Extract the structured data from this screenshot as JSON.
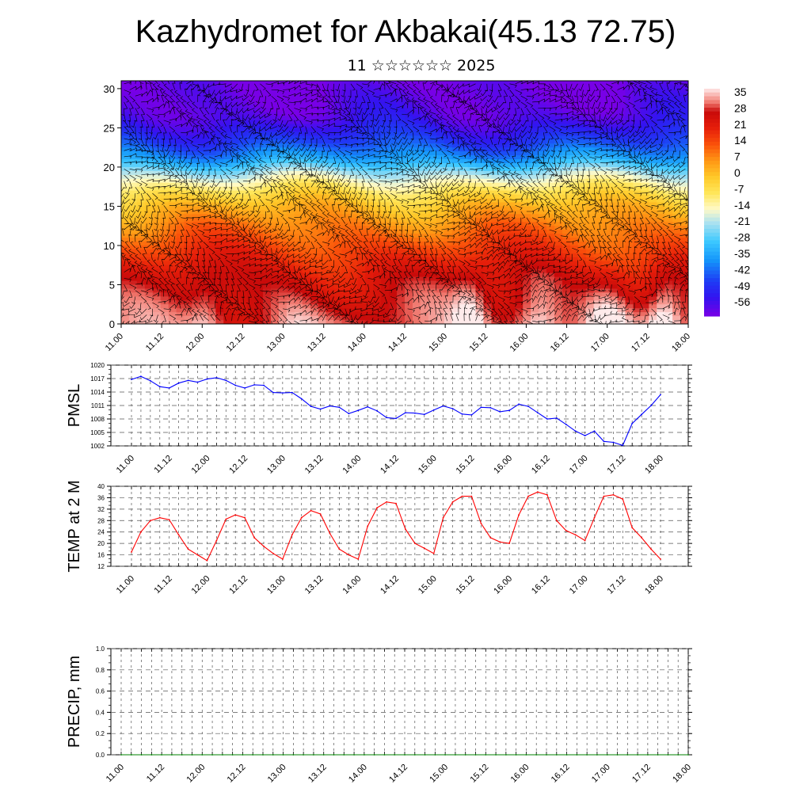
{
  "title": "Kazhydromet for Akbakai(45.13 72.75)",
  "subtitle": "11 ☆☆☆☆☆☆ 2025",
  "time_labels": [
    "11.00",
    "11.12",
    "12.00",
    "12.12",
    "13.00",
    "13.12",
    "14.00",
    "14.12",
    "15.00",
    "15.12",
    "16.00",
    "16.12",
    "17.00",
    "17.12",
    "18.00"
  ],
  "colors": {
    "pmsl_line": "#0000ff",
    "temp_line": "#ff0000",
    "precip_line": "#008000",
    "grid": "#555555"
  },
  "chart_data": [
    {
      "type": "heatmap",
      "name": "upper-air-temperature-wind",
      "ylim": [
        0,
        30
      ],
      "y_ticks": [
        0,
        5,
        10,
        15,
        20,
        25,
        30
      ],
      "colorbar_labels": [
        "35",
        "28",
        "21",
        "14",
        "7",
        "0",
        "-7",
        "-14",
        "-21",
        "-28",
        "-35",
        "-42",
        "-49",
        "-56"
      ],
      "colorbar_range": [
        -60,
        38
      ],
      "layer_profile": {
        "levels": [
          0,
          3,
          6,
          9,
          11,
          13,
          15,
          16.5,
          18,
          19.5,
          21,
          23,
          24.5,
          26.5,
          28.5,
          31
        ],
        "temps": [
          30,
          27,
          24,
          18,
          13,
          8,
          2,
          -4,
          -12,
          -22,
          -34,
          -44,
          -50,
          -56,
          -58,
          -60
        ]
      },
      "warm_spots": [
        {
          "t": 2.1,
          "w": 0.45,
          "amp": 8
        },
        {
          "t": 4.3,
          "w": 0.7,
          "amp": 6
        },
        {
          "t": 8.6,
          "w": 0.4,
          "amp": 11
        },
        {
          "t": 10.3,
          "w": 0.6,
          "amp": 13
        },
        {
          "t": 12.0,
          "w": 0.55,
          "amp": 12
        },
        {
          "t": 13.4,
          "w": 0.4,
          "amp": 13
        }
      ]
    },
    {
      "type": "line",
      "name": "PMSL",
      "ylabel": "PMSL",
      "ylim": [
        1002,
        1020
      ],
      "y_ticks": [
        1002,
        1005,
        1008,
        1011,
        1014,
        1017,
        1020
      ],
      "series": [
        {
          "values": [
            1016.8,
            1017.5,
            1016.5,
            1015.2,
            1014.9,
            1016.0,
            1016.6,
            1016.2,
            1016.9,
            1017.2,
            1016.6,
            1015.5,
            1014.9,
            1015.6,
            1015.5,
            1013.9,
            1013.8,
            1013.9,
            1012.5,
            1010.8,
            1010.2,
            1010.9,
            1010.6,
            1009.2,
            1009.9,
            1010.7,
            1009.8,
            1008.3,
            1008.1,
            1009.4,
            1009.3,
            1009.0,
            1010.0,
            1010.9,
            1010.3,
            1009.1,
            1008.9,
            1010.6,
            1010.5,
            1009.6,
            1009.9,
            1011.3,
            1010.8,
            1009.4,
            1008.0,
            1008.2,
            1006.8,
            1005.3,
            1004.3,
            1005.3,
            1003.0,
            1002.8,
            1002.1,
            1007.0,
            1009.0,
            1011.0,
            1013.4
          ]
        }
      ]
    },
    {
      "type": "line",
      "name": "TEMP at 2 M",
      "ylabel": "TEMP at 2 M",
      "ylim": [
        12,
        40
      ],
      "y_ticks": [
        12,
        16,
        20,
        24,
        28,
        32,
        36,
        40
      ],
      "series": [
        {
          "values": [
            17.0,
            24.0,
            28.0,
            29.0,
            28.3,
            23.0,
            18.0,
            16.0,
            14.0,
            21.0,
            28.5,
            30.0,
            29.0,
            22.0,
            19.0,
            16.5,
            14.5,
            23.0,
            29.0,
            31.5,
            30.3,
            23.5,
            18.0,
            16.0,
            14.5,
            26.0,
            32.5,
            34.5,
            34.0,
            25.0,
            20.0,
            18.3,
            16.5,
            29.0,
            34.5,
            36.5,
            36.5,
            27.0,
            22.0,
            20.5,
            20.0,
            30.0,
            36.5,
            38.0,
            37.0,
            28.0,
            24.5,
            23.0,
            21.0,
            29.0,
            36.5,
            37.0,
            35.5,
            25.5,
            22.0,
            18.0,
            14.5
          ]
        }
      ]
    },
    {
      "type": "line",
      "name": "PRECIP",
      "ylabel": "PRECIP, mm",
      "ylim": [
        0,
        1
      ],
      "y_ticks": [
        "0.0",
        "0.2",
        "0.4",
        "0.6",
        "0.8",
        "1.0"
      ],
      "series": [
        {
          "values": [
            0,
            0,
            0,
            0,
            0,
            0,
            0,
            0,
            0,
            0,
            0,
            0,
            0,
            0,
            0,
            0,
            0,
            0,
            0,
            0,
            0,
            0,
            0,
            0,
            0,
            0,
            0,
            0,
            0,
            0,
            0,
            0,
            0,
            0,
            0,
            0,
            0,
            0,
            0,
            0,
            0,
            0,
            0,
            0,
            0,
            0,
            0,
            0,
            0,
            0,
            0,
            0,
            0,
            0,
            0,
            0,
            0
          ]
        }
      ]
    }
  ]
}
